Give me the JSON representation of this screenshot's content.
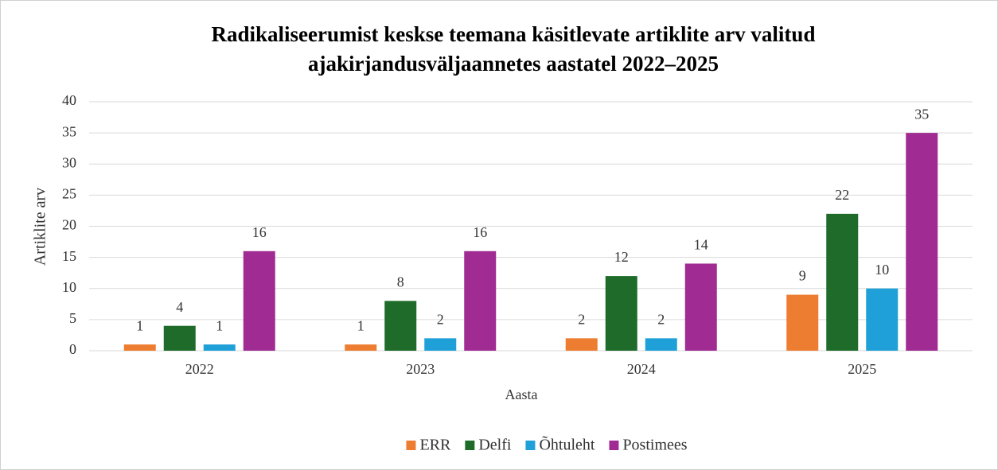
{
  "chart_data": {
    "type": "bar",
    "title": [
      "Radikaliseerumist keskse teemana käsitlevate artiklite arv valitud",
      "ajakirjandusväljaannetes aastatel 2022–2025"
    ],
    "xlabel": "Aasta",
    "ylabel": "Artiklite arv",
    "categories": [
      "2022",
      "2023",
      "2024",
      "2025"
    ],
    "series": [
      {
        "name": "ERR",
        "color": "#ed7d31",
        "values": [
          1,
          1,
          2,
          9
        ]
      },
      {
        "name": "Delfi",
        "color": "#1e6b2a",
        "values": [
          4,
          8,
          12,
          22
        ]
      },
      {
        "name": "Õhtuleht",
        "color": "#1fa0d8",
        "values": [
          1,
          2,
          2,
          10
        ]
      },
      {
        "name": "Postimees",
        "color": "#a02b93",
        "values": [
          16,
          16,
          14,
          35
        ]
      }
    ],
    "ylim": [
      0,
      40
    ],
    "yticks": [
      0,
      5,
      10,
      15,
      20,
      25,
      30,
      35,
      40
    ],
    "grid": true,
    "legend": "bottom"
  }
}
